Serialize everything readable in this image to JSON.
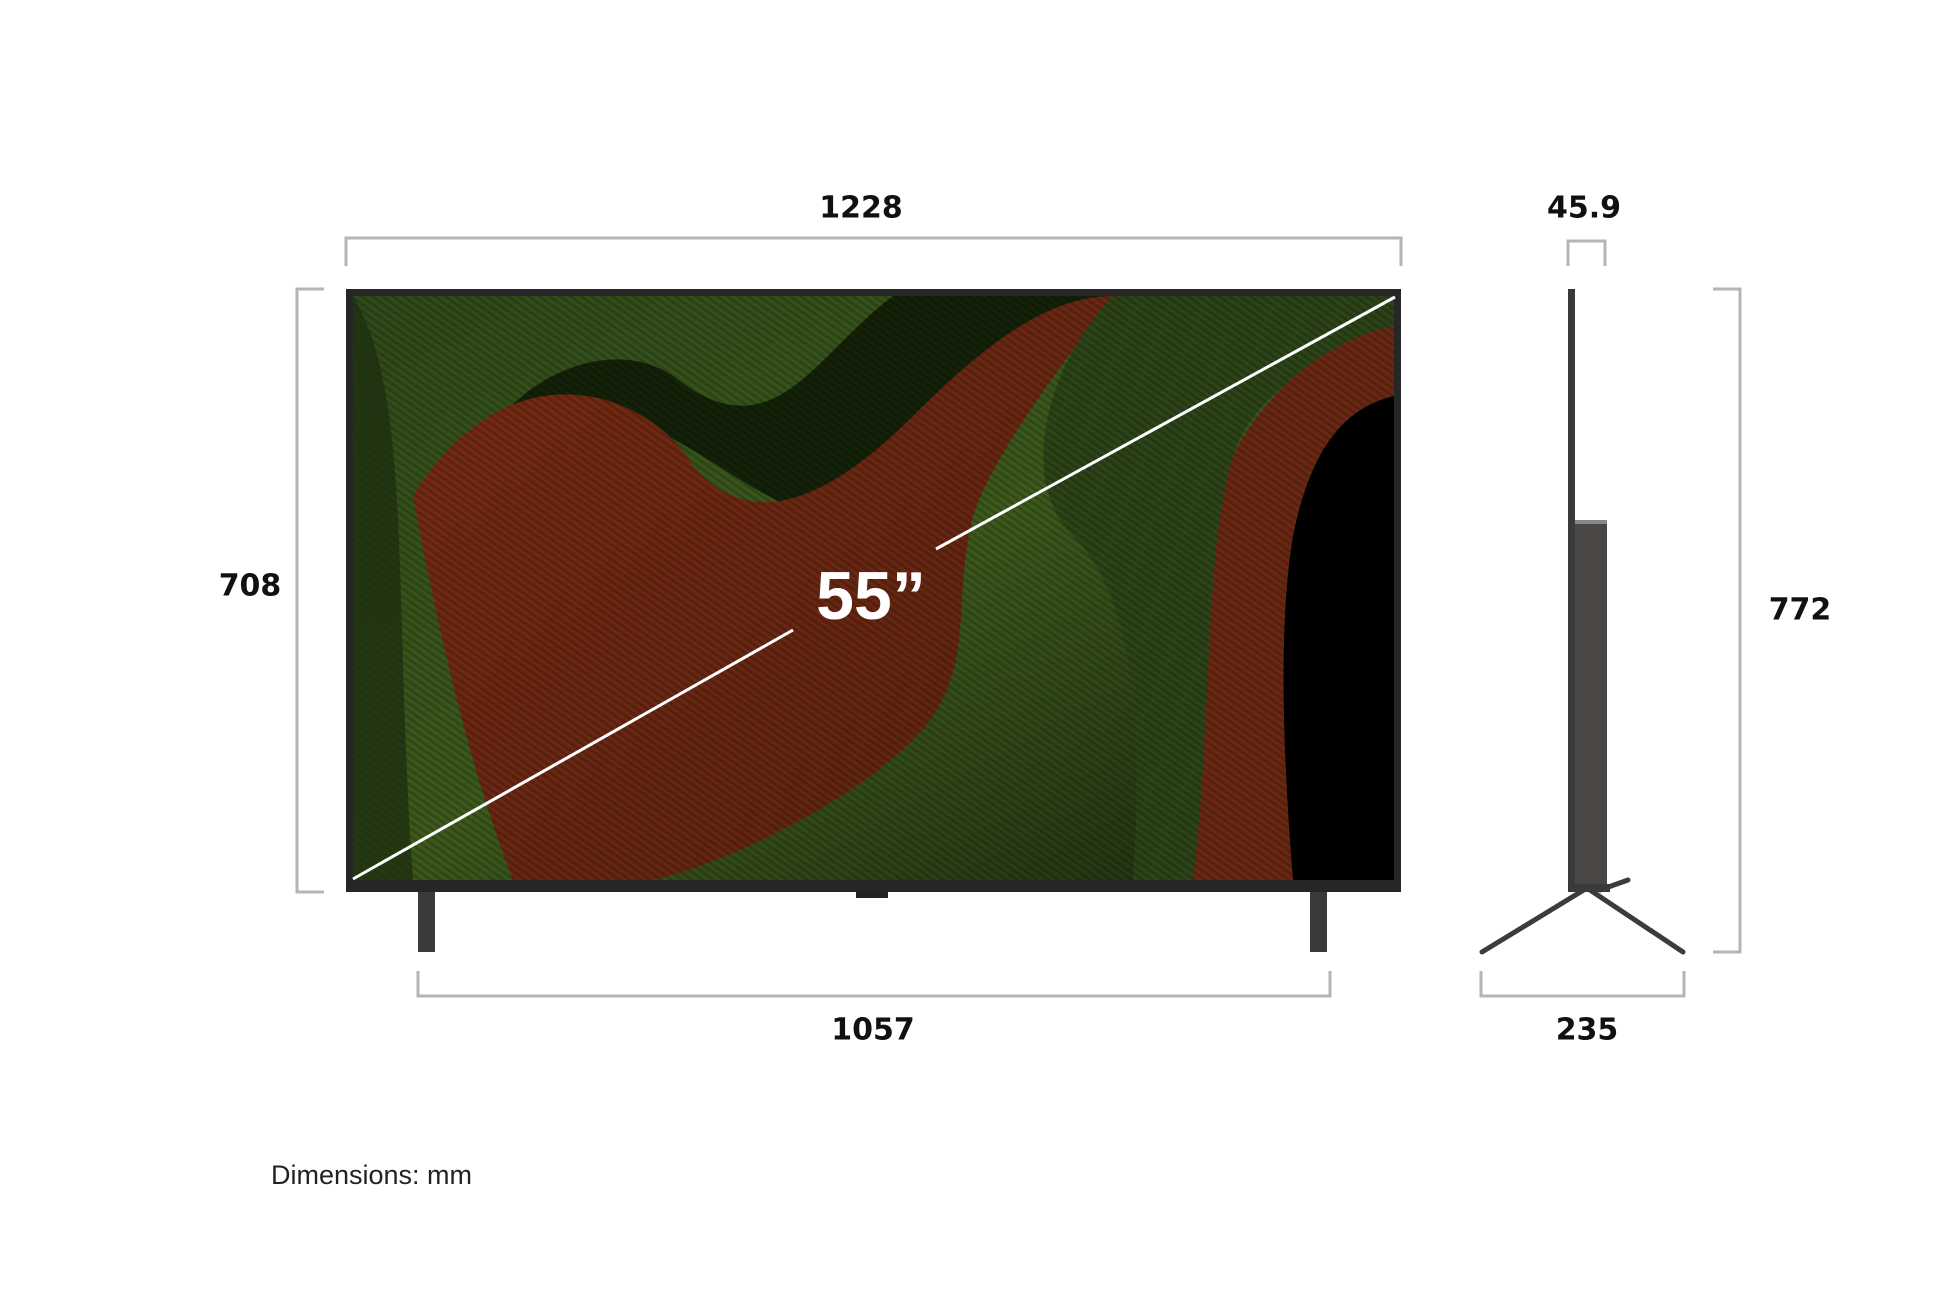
{
  "dimensions": {
    "front_width": "1228",
    "front_height": "708",
    "stand_span": "1057",
    "screen_diagonal": "55”",
    "depth_panel": "45.9",
    "height_with_stand": "772",
    "stand_depth": "235"
  },
  "units_note": "Dimensions: mm",
  "colors": {
    "bracket": "#b5b5b5",
    "frame": "#2a2a2a",
    "stand": "#4a4745"
  }
}
